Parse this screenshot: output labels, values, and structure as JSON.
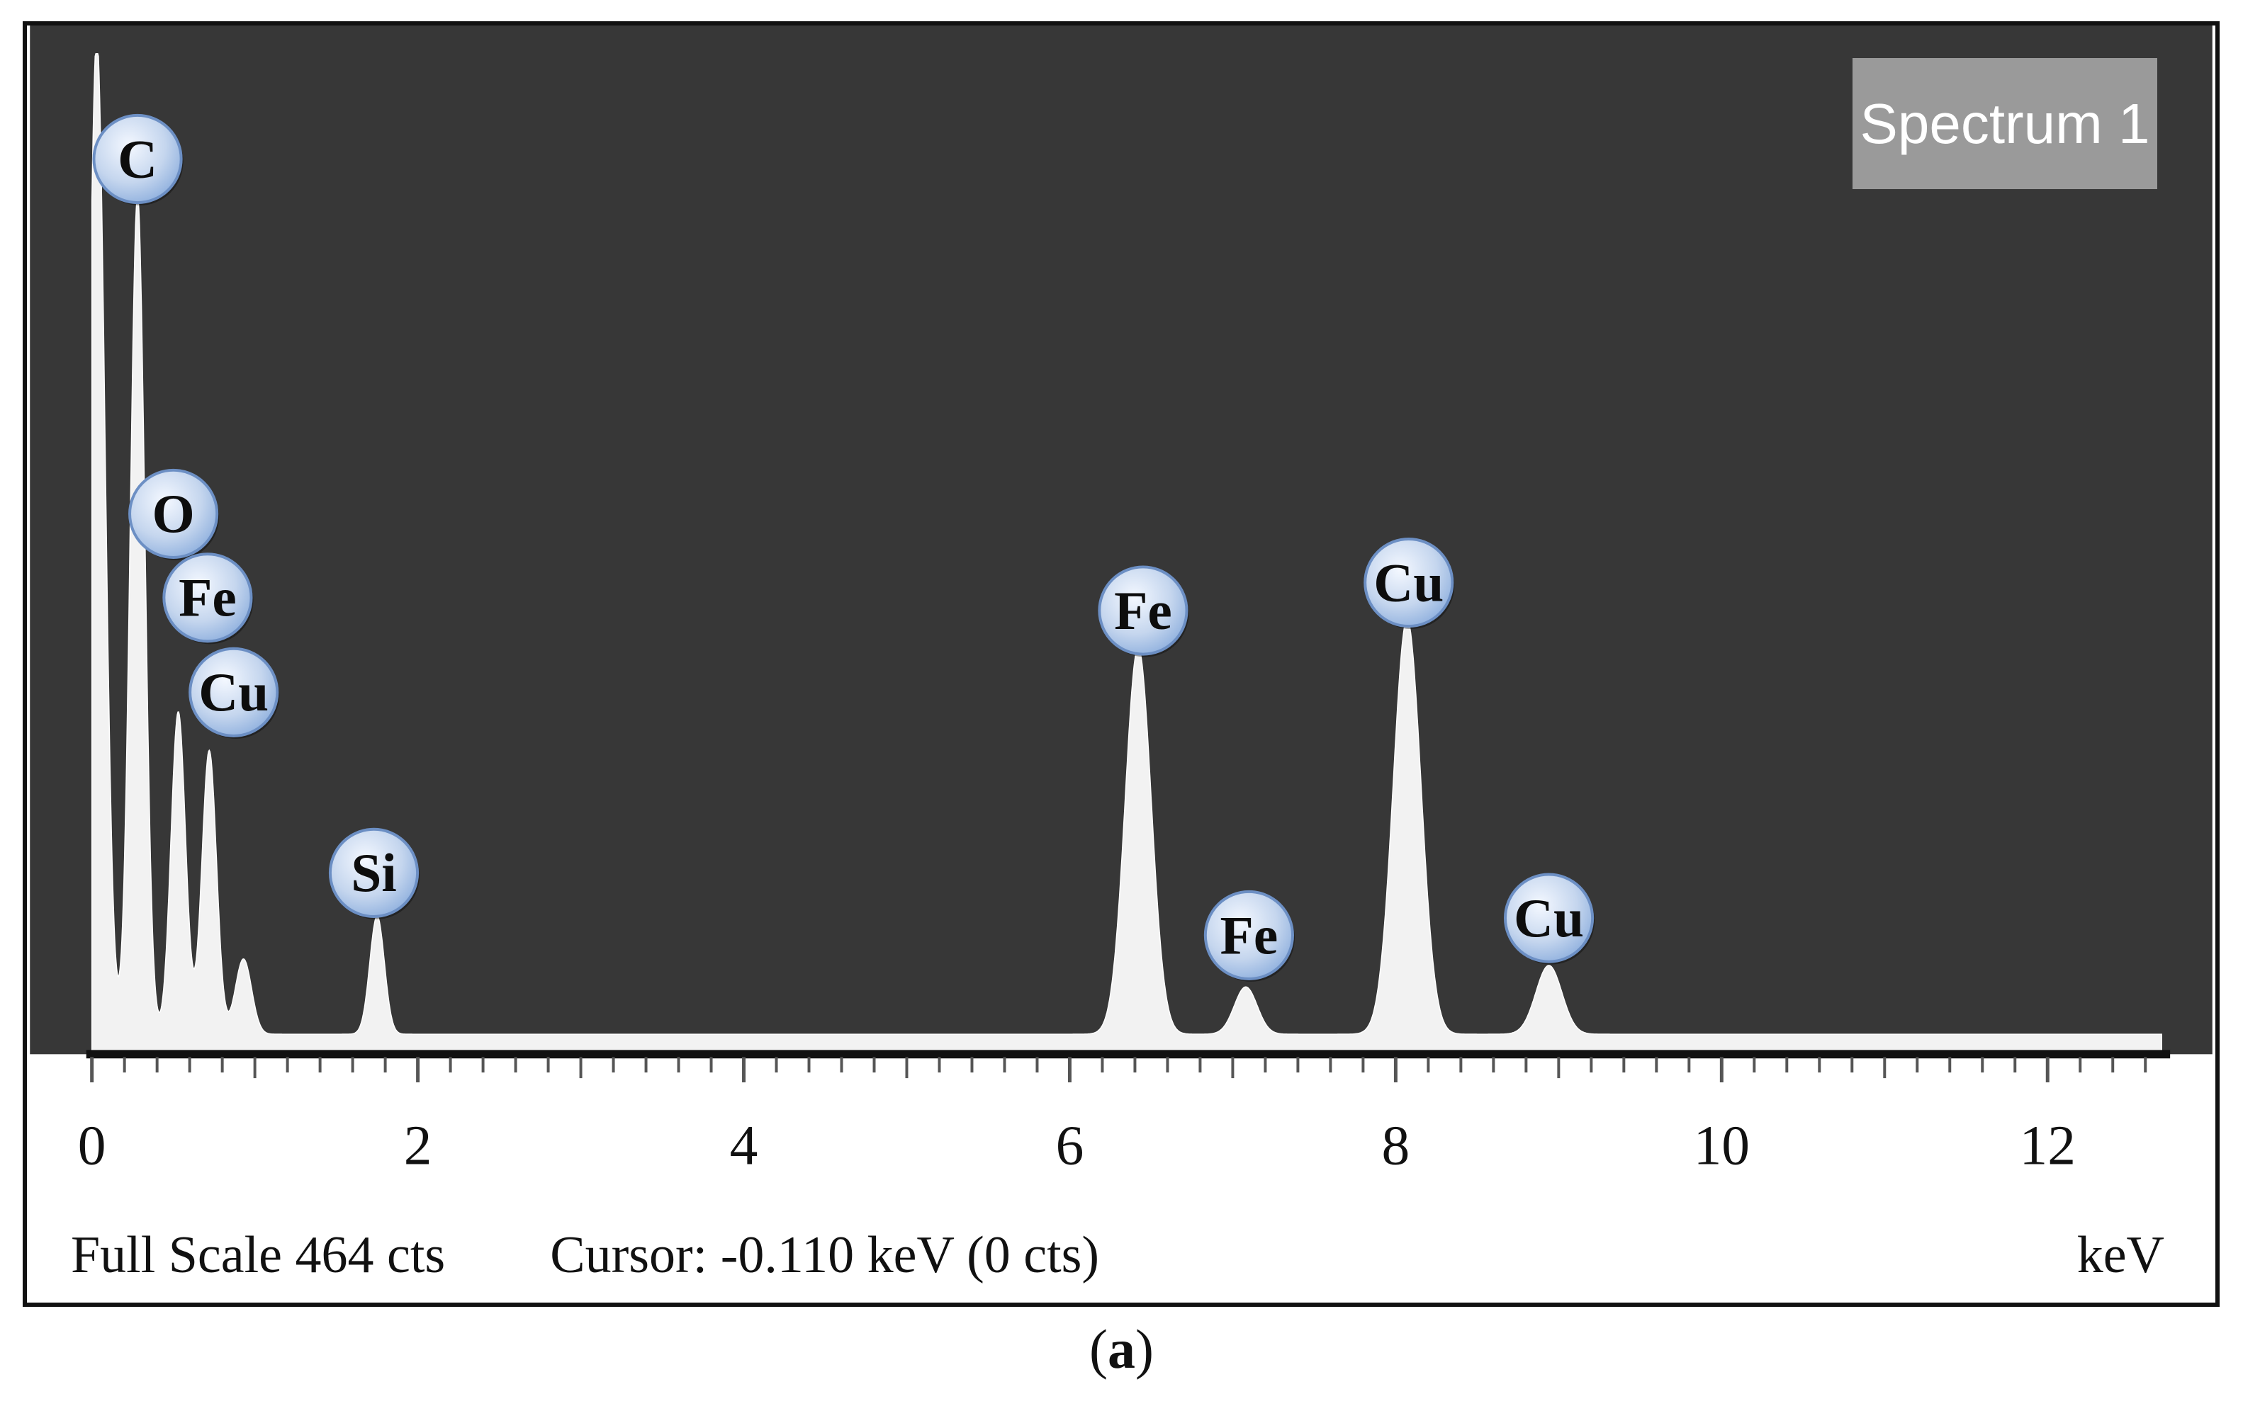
{
  "panel_label": "a",
  "spectrum_label": "Spectrum 1",
  "status": {
    "full_scale": "Full Scale 464 cts",
    "cursor": "Cursor: -0.110 keV (0 cts)",
    "unit": "keV"
  },
  "colors": {
    "plot_background": "#373737",
    "spectrum_fill": "#f2f2f2",
    "label_bubble": "#c5d6ee",
    "label_bubble_edge": "#6c8fc4",
    "badge": "#9a9a9a"
  },
  "chart_data": {
    "type": "area",
    "x_unit": "keV",
    "xlim": [
      0,
      12.7
    ],
    "ylim": [
      0,
      464
    ],
    "full_scale_cts": 464,
    "x_ticks": [
      0,
      2,
      4,
      6,
      8,
      10,
      12
    ],
    "baseline_cts": 8,
    "peaks": [
      {
        "x": 0.03,
        "y": 464,
        "width": 0.05
      },
      {
        "x": 0.28,
        "y": 390,
        "width": 0.045
      },
      {
        "x": 0.53,
        "y": 150,
        "width": 0.045
      },
      {
        "x": 0.72,
        "y": 132,
        "width": 0.045
      },
      {
        "x": 0.93,
        "y": 35,
        "width": 0.05
      },
      {
        "x": 1.75,
        "y": 55,
        "width": 0.045
      },
      {
        "x": 6.42,
        "y": 180,
        "width": 0.08
      },
      {
        "x": 7.08,
        "y": 22,
        "width": 0.07
      },
      {
        "x": 8.07,
        "y": 193,
        "width": 0.085
      },
      {
        "x": 8.94,
        "y": 32,
        "width": 0.08
      }
    ],
    "annotations": [
      {
        "label": "C",
        "x": 0.28,
        "y": 415
      },
      {
        "label": "O",
        "x": 0.5,
        "y": 250
      },
      {
        "label": "Fe",
        "x": 0.71,
        "y": 211
      },
      {
        "label": "Cu",
        "x": 0.87,
        "y": 167
      },
      {
        "label": "Si",
        "x": 1.73,
        "y": 83
      },
      {
        "label": "Fe",
        "x": 6.45,
        "y": 205
      },
      {
        "label": "Fe",
        "x": 7.1,
        "y": 54
      },
      {
        "label": "Cu",
        "x": 8.08,
        "y": 218
      },
      {
        "label": "Cu",
        "x": 8.94,
        "y": 62
      }
    ]
  }
}
